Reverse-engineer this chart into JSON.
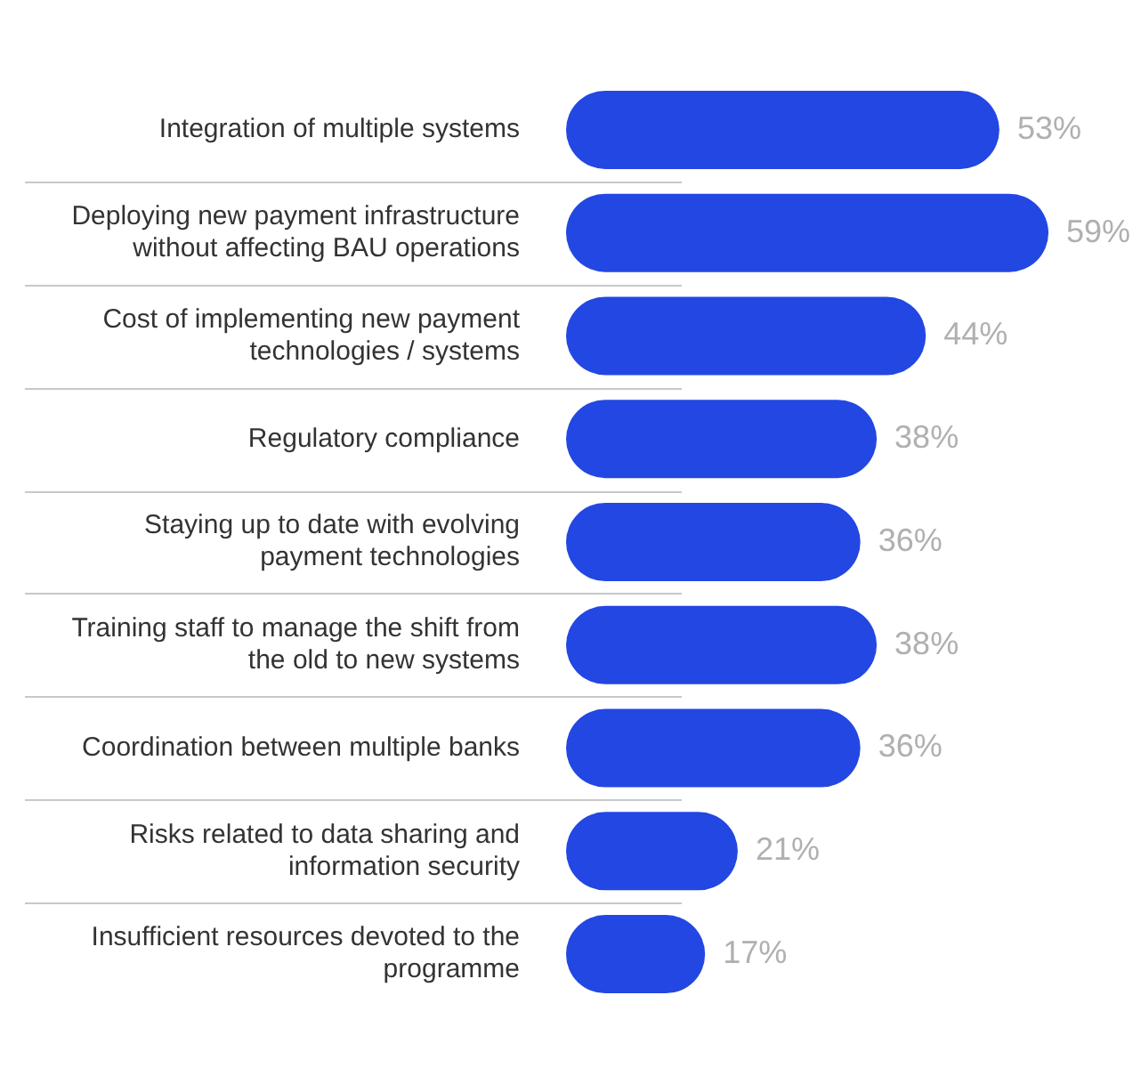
{
  "chart_data": {
    "type": "bar",
    "orientation": "horizontal",
    "categories": [
      "Integration of multiple systems",
      "Deploying new payment infrastructure without affecting BAU operations",
      "Cost of implementing new payment technologies / systems",
      "Regulatory compliance",
      "Staying up to date with evolving payment technologies",
      "Training staff to manage the shift from the old to new systems",
      "Coordination between multiple banks",
      "Risks related to data sharing and information security",
      "Insufficient resources devoted to the programme"
    ],
    "values": [
      53,
      59,
      44,
      38,
      36,
      38,
      36,
      21,
      17
    ],
    "value_labels": [
      "53%",
      "59%",
      "44%",
      "38%",
      "36%",
      "38%",
      "36%",
      "21%",
      "17%"
    ],
    "color": "#2347e2",
    "tick_labels": "y",
    "grid": false,
    "legend": false
  }
}
